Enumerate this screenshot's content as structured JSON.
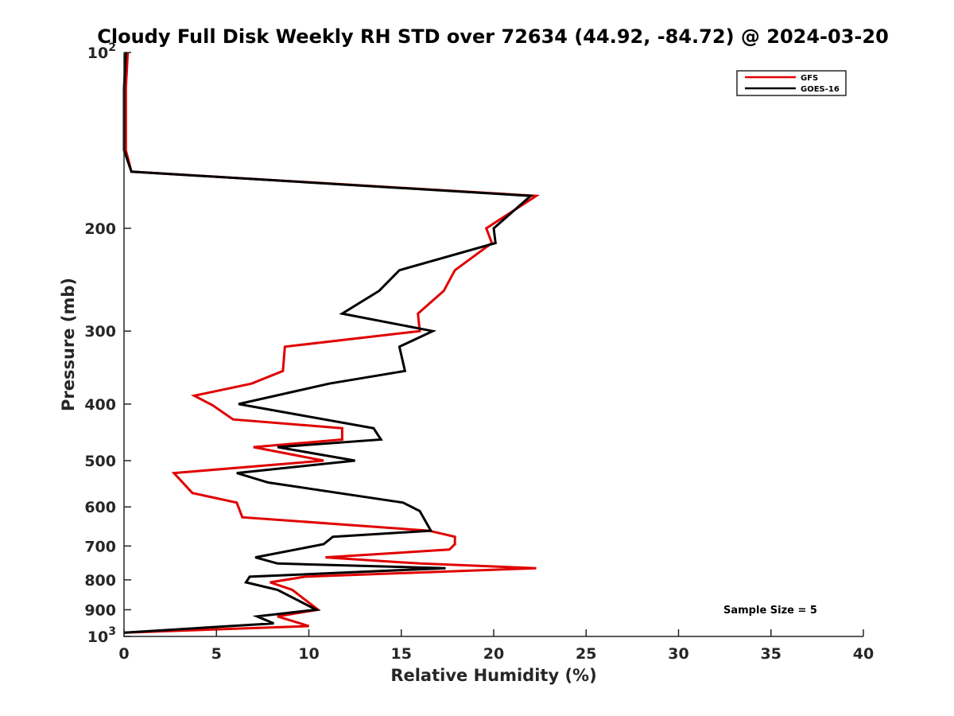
{
  "chart_data": {
    "type": "line",
    "title": "Cloudy Full Disk Weekly RH STD over 72634 (44.92, -84.72) @ 2024-03-20",
    "xlabel": "Relative Humidity (%)",
    "ylabel": "Pressure (mb)",
    "xlim": [
      0,
      40
    ],
    "ylim": [
      100,
      1000
    ],
    "y_scale": "log",
    "y_reversed": true,
    "x_ticks": [
      "0",
      "5",
      "10",
      "15",
      "20",
      "25",
      "30",
      "35",
      "40"
    ],
    "y_ticks": [
      {
        "value": 100,
        "base": "10",
        "exp": "2"
      },
      {
        "value": 200,
        "label": "200"
      },
      {
        "value": 300,
        "label": "300"
      },
      {
        "value": 400,
        "label": "400"
      },
      {
        "value": 500,
        "label": "500"
      },
      {
        "value": 600,
        "label": "600"
      },
      {
        "value": 700,
        "label": "700"
      },
      {
        "value": 800,
        "label": "800"
      },
      {
        "value": 900,
        "label": "900"
      },
      {
        "value": 1000,
        "base": "10",
        "exp": "3"
      }
    ],
    "grid": false,
    "legend_position": "top-right",
    "annotation": "Sample Size = 5",
    "series": [
      {
        "name": "GFS",
        "color": "#e00000",
        "points": [
          [
            0.2,
            100
          ],
          [
            0.1,
            115
          ],
          [
            0.1,
            130
          ],
          [
            0.1,
            147
          ],
          [
            0.4,
            160
          ],
          [
            22.3,
            176
          ],
          [
            19.6,
            200
          ],
          [
            19.9,
            212
          ],
          [
            17.9,
            236
          ],
          [
            17.3,
            256
          ],
          [
            15.9,
            280
          ],
          [
            16.0,
            300
          ],
          [
            8.7,
            319
          ],
          [
            8.6,
            351
          ],
          [
            6.9,
            369
          ],
          [
            3.8,
            387
          ],
          [
            4.8,
            402
          ],
          [
            5.9,
            425
          ],
          [
            11.8,
            440
          ],
          [
            11.8,
            460
          ],
          [
            7.0,
            474
          ],
          [
            10.8,
            500
          ],
          [
            2.7,
            525
          ],
          [
            3.7,
            568
          ],
          [
            6.1,
            590
          ],
          [
            6.4,
            625
          ],
          [
            16.5,
            659
          ],
          [
            17.9,
            675
          ],
          [
            17.9,
            695
          ],
          [
            17.6,
            710
          ],
          [
            10.9,
            732
          ],
          [
            16.0,
            750
          ],
          [
            22.3,
            764
          ],
          [
            9.8,
            790
          ],
          [
            7.9,
            808
          ],
          [
            9.1,
            832
          ],
          [
            10.5,
            900
          ],
          [
            8.3,
            924
          ],
          [
            10.0,
            960
          ],
          [
            0.0,
            985
          ]
        ]
      },
      {
        "name": "GOES-16",
        "color": "#000000",
        "points": [
          [
            0.1,
            100
          ],
          [
            0.0,
            115
          ],
          [
            0.0,
            130
          ],
          [
            0.0,
            147
          ],
          [
            0.4,
            160
          ],
          [
            22.0,
            176
          ],
          [
            20.0,
            200
          ],
          [
            20.1,
            212
          ],
          [
            14.9,
            236
          ],
          [
            13.8,
            256
          ],
          [
            11.8,
            280
          ],
          [
            16.7,
            300
          ],
          [
            14.9,
            319
          ],
          [
            15.2,
            351
          ],
          [
            11.1,
            369
          ],
          [
            6.2,
            400
          ],
          [
            13.5,
            440
          ],
          [
            13.9,
            460
          ],
          [
            8.3,
            474
          ],
          [
            12.5,
            500
          ],
          [
            6.1,
            525
          ],
          [
            7.8,
            545
          ],
          [
            15.1,
            590
          ],
          [
            16.0,
            610
          ],
          [
            16.6,
            659
          ],
          [
            11.3,
            675
          ],
          [
            10.8,
            695
          ],
          [
            7.1,
            732
          ],
          [
            8.3,
            750
          ],
          [
            17.4,
            764
          ],
          [
            6.8,
            790
          ],
          [
            6.6,
            808
          ],
          [
            8.3,
            832
          ],
          [
            10.4,
            900
          ],
          [
            7.2,
            924
          ],
          [
            8.1,
            950
          ],
          [
            0.0,
            985
          ]
        ]
      }
    ]
  }
}
